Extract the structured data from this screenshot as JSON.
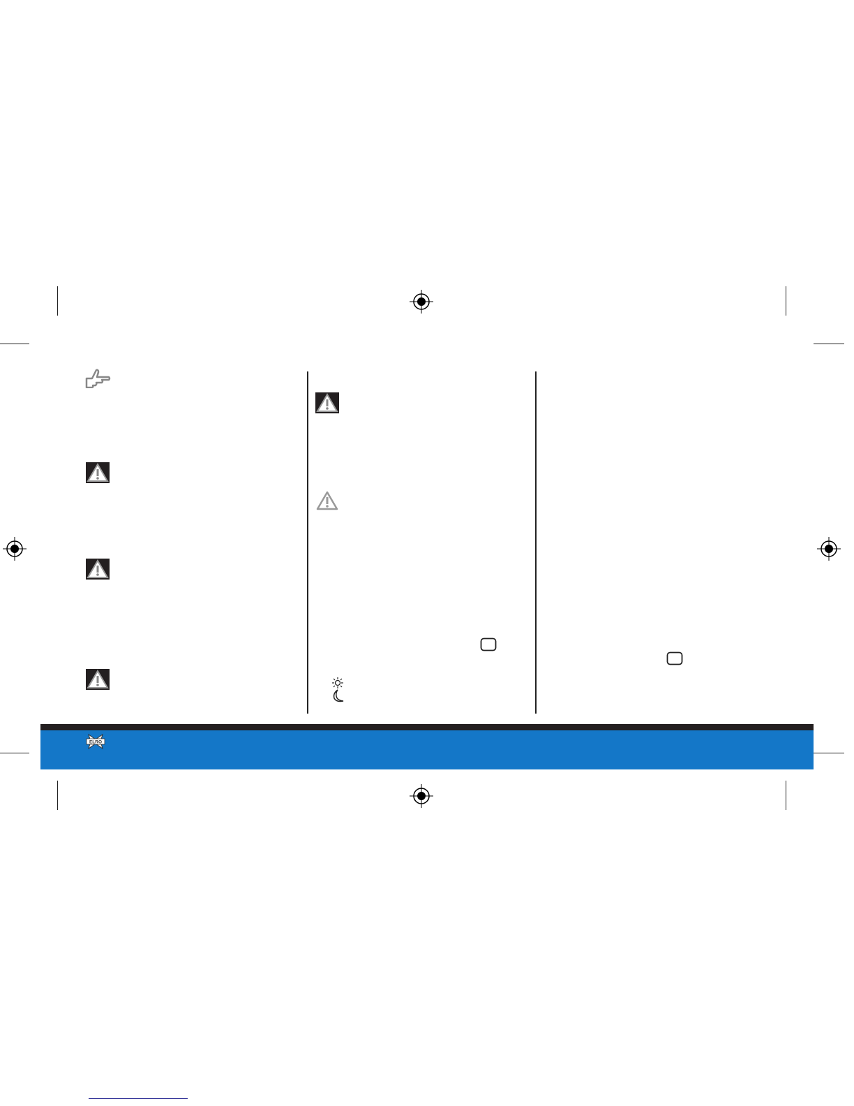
{
  "footer": {
    "logo_text": "ELRO",
    "band_color": "#1477c8",
    "band_top_color": "#231f20"
  },
  "icons": {
    "hint": "pointing-hand-icon",
    "warning": "warning-triangle-icon",
    "button": "button-key-icon",
    "day": "sun-icon",
    "night": "moon-icon",
    "registration": "registration-mark-icon"
  },
  "link_color": "#1a1a8c"
}
